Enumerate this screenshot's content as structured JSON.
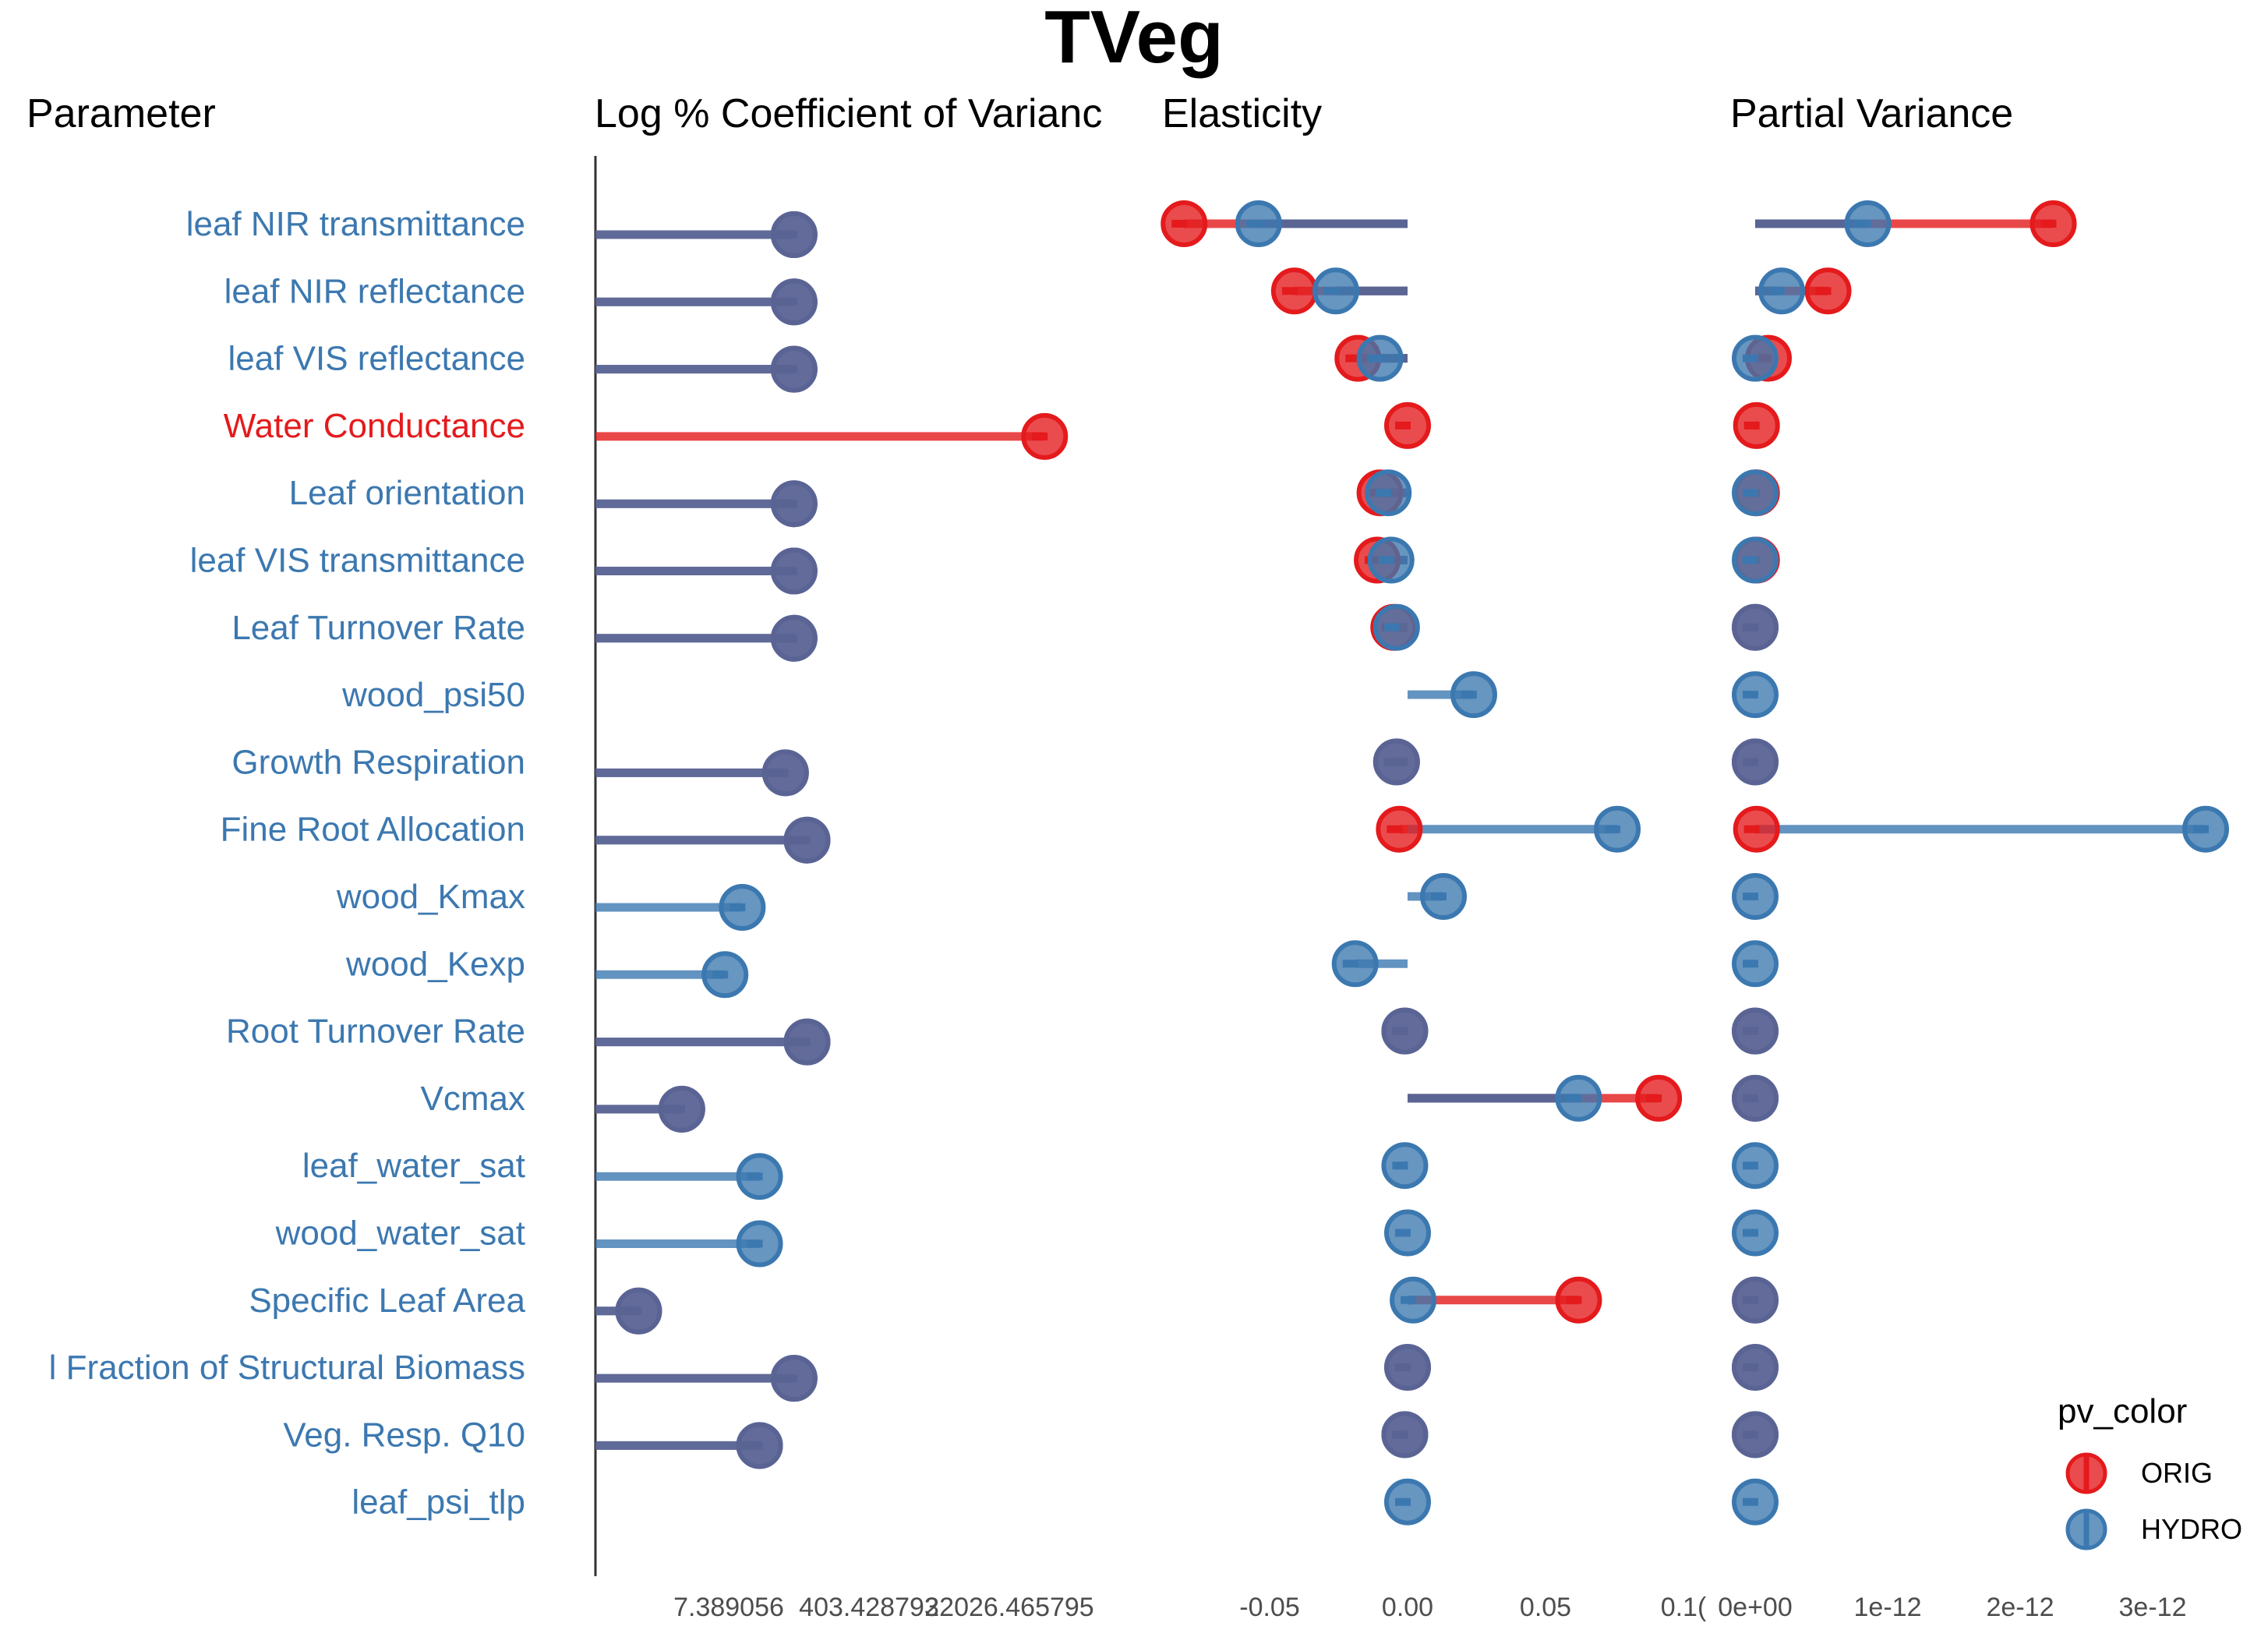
{
  "chart_data": {
    "type": "dot-lollipop",
    "title": "TVeg",
    "column_headers": {
      "parameter": "Parameter",
      "cv": "Log % Coefficient of Varianc",
      "elasticity": "Elasticity",
      "pv": "Partial Variance"
    },
    "parameters": [
      {
        "label": "leaf NIR transmittance",
        "color": "#3c78b0"
      },
      {
        "label": "leaf NIR reflectance",
        "color": "#3c78b0"
      },
      {
        "label": "leaf VIS reflectance",
        "color": "#3c78b0"
      },
      {
        "label": "Water Conductance",
        "color": "#e41a1c"
      },
      {
        "label": "Leaf orientation",
        "color": "#3c78b0"
      },
      {
        "label": "leaf VIS transmittance",
        "color": "#3c78b0"
      },
      {
        "label": "Leaf Turnover Rate",
        "color": "#3c78b0"
      },
      {
        "label": "wood_psi50",
        "color": "#3c78b0"
      },
      {
        "label": "Growth Respiration",
        "color": "#3c78b0"
      },
      {
        "label": "Fine Root Allocation",
        "color": "#3c78b0"
      },
      {
        "label": "wood_Kmax",
        "color": "#3c78b0"
      },
      {
        "label": "wood_Kexp",
        "color": "#3c78b0"
      },
      {
        "label": "Root Turnover Rate",
        "color": "#3c78b0"
      },
      {
        "label": "Vcmax",
        "color": "#3c78b0"
      },
      {
        "label": "leaf_water_sat",
        "color": "#3c78b0"
      },
      {
        "label": "wood_water_sat",
        "color": "#3c78b0"
      },
      {
        "label": "Specific Leaf Area",
        "color": "#3c78b0"
      },
      {
        "label": "l Fraction of Structural Biomass",
        "color": "#3c78b0"
      },
      {
        "label": "Veg. Resp. Q10",
        "color": "#3c78b0"
      },
      {
        "label": "leaf_psi_tlp",
        "color": "#3c78b0"
      }
    ],
    "series": [
      {
        "name": "ORIG",
        "color": "#e41a1c",
        "cv_log": [
          5.0,
          5.0,
          5.0,
          7.9,
          5.0,
          5.0,
          5.0,
          null,
          4.9,
          5.15,
          null,
          null,
          5.15,
          3.7,
          null,
          null,
          3.2,
          5.0,
          4.6,
          null
        ],
        "elasticity": [
          -0.081,
          -0.041,
          -0.018,
          0.0,
          -0.01,
          -0.011,
          -0.005,
          null,
          -0.004,
          -0.003,
          null,
          null,
          -0.001,
          0.091,
          null,
          null,
          0.062,
          0.0,
          -0.001,
          null
        ],
        "partial_variance": [
          2.25e-12,
          5.5e-13,
          1e-13,
          1e-14,
          1e-14,
          1e-14,
          0.0,
          null,
          0.0,
          1e-14,
          null,
          null,
          0.0,
          0.0,
          null,
          null,
          0.0,
          0.0,
          0.0,
          null
        ]
      },
      {
        "name": "HYDRO",
        "color": "#3c78b0",
        "cv_log": [
          5.0,
          5.0,
          5.0,
          null,
          5.0,
          5.0,
          5.0,
          null,
          4.9,
          5.15,
          4.4,
          4.2,
          5.15,
          3.7,
          4.6,
          4.6,
          3.2,
          5.0,
          4.6,
          null
        ],
        "elasticity": [
          -0.054,
          -0.026,
          -0.01,
          null,
          -0.007,
          -0.006,
          -0.004,
          0.024,
          -0.004,
          0.076,
          0.013,
          -0.019,
          -0.001,
          0.062,
          -0.001,
          0.0,
          0.002,
          0.0,
          -0.001,
          0.0
        ],
        "partial_variance": [
          8.5e-13,
          2e-13,
          0.0,
          null,
          0.0,
          0.0,
          0.0,
          0.0,
          0.0,
          3.4e-12,
          0.0,
          0.0,
          0.0,
          0.0,
          0.0,
          0.0,
          0.0,
          0.0,
          0.0,
          0.0
        ]
      }
    ],
    "axes": {
      "cv": {
        "scale": "log",
        "range": [
          2.7,
          8.8
        ],
        "ticks": [
          {
            "value": 2,
            "label": "7.389056"
          },
          {
            "value": 6,
            "label": "403.428793"
          },
          {
            "value": 10,
            "label": "22026.465795"
          }
        ]
      },
      "elasticity": {
        "range": [
          -0.095,
          0.105
        ],
        "ticks": [
          {
            "value": -0.05,
            "label": "-0.05"
          },
          {
            "value": 0.0,
            "label": "0.00"
          },
          {
            "value": 0.05,
            "label": "0.05"
          },
          {
            "value": 0.1,
            "label": "0.1("
          }
        ]
      },
      "partial_variance": {
        "range": [
          -1.5e-13,
          3.5e-12
        ],
        "ticks": [
          {
            "value": 0,
            "label": "0e+00"
          },
          {
            "value": 1e-12,
            "label": "1e-12"
          },
          {
            "value": 2e-12,
            "label": "2e-12"
          },
          {
            "value": 3e-12,
            "label": "3e-12"
          }
        ]
      }
    },
    "legend": {
      "title": "pv_color",
      "position": "bottom-right",
      "entries": [
        "ORIG",
        "HYDRO"
      ]
    },
    "grid": false
  }
}
